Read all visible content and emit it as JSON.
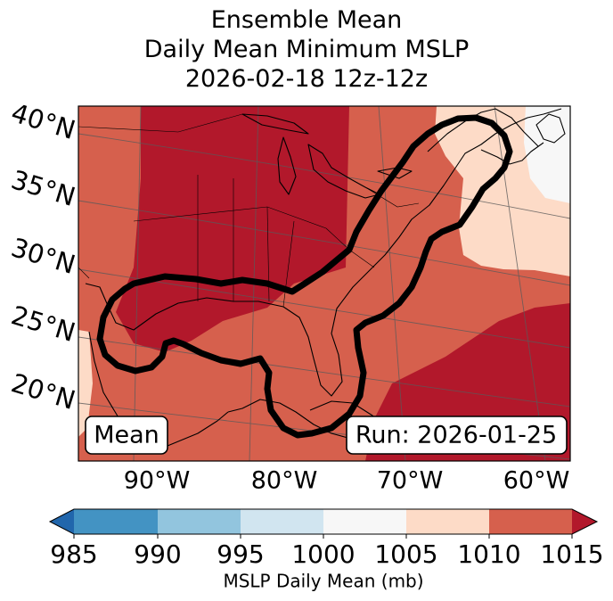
{
  "title": {
    "line1": "Ensemble Mean",
    "line2": "Daily Mean Minimum MSLP",
    "line3": "2026-02-18 12z-12z"
  },
  "map": {
    "lat_labels": [
      "40°N",
      "35°N",
      "30°N",
      "25°N",
      "20°N"
    ],
    "lon_labels": [
      "90°W",
      "80°W",
      "70°W",
      "60°W"
    ],
    "mean_label": "Mean",
    "run_label": "Run: 2026-01-25"
  },
  "colorbar": {
    "label": "MSLP Daily Mean (mb)",
    "ticks": [
      "985",
      "990",
      "995",
      "1000",
      "1005",
      "1010",
      "1015"
    ],
    "colors": [
      "#4393c3",
      "#92c5de",
      "#d1e5f0",
      "#f7f7f7",
      "#fddbc7",
      "#d6604d",
      "#b2182b"
    ],
    "under_color": "#2166ac",
    "over_color": "#b2182b"
  }
}
